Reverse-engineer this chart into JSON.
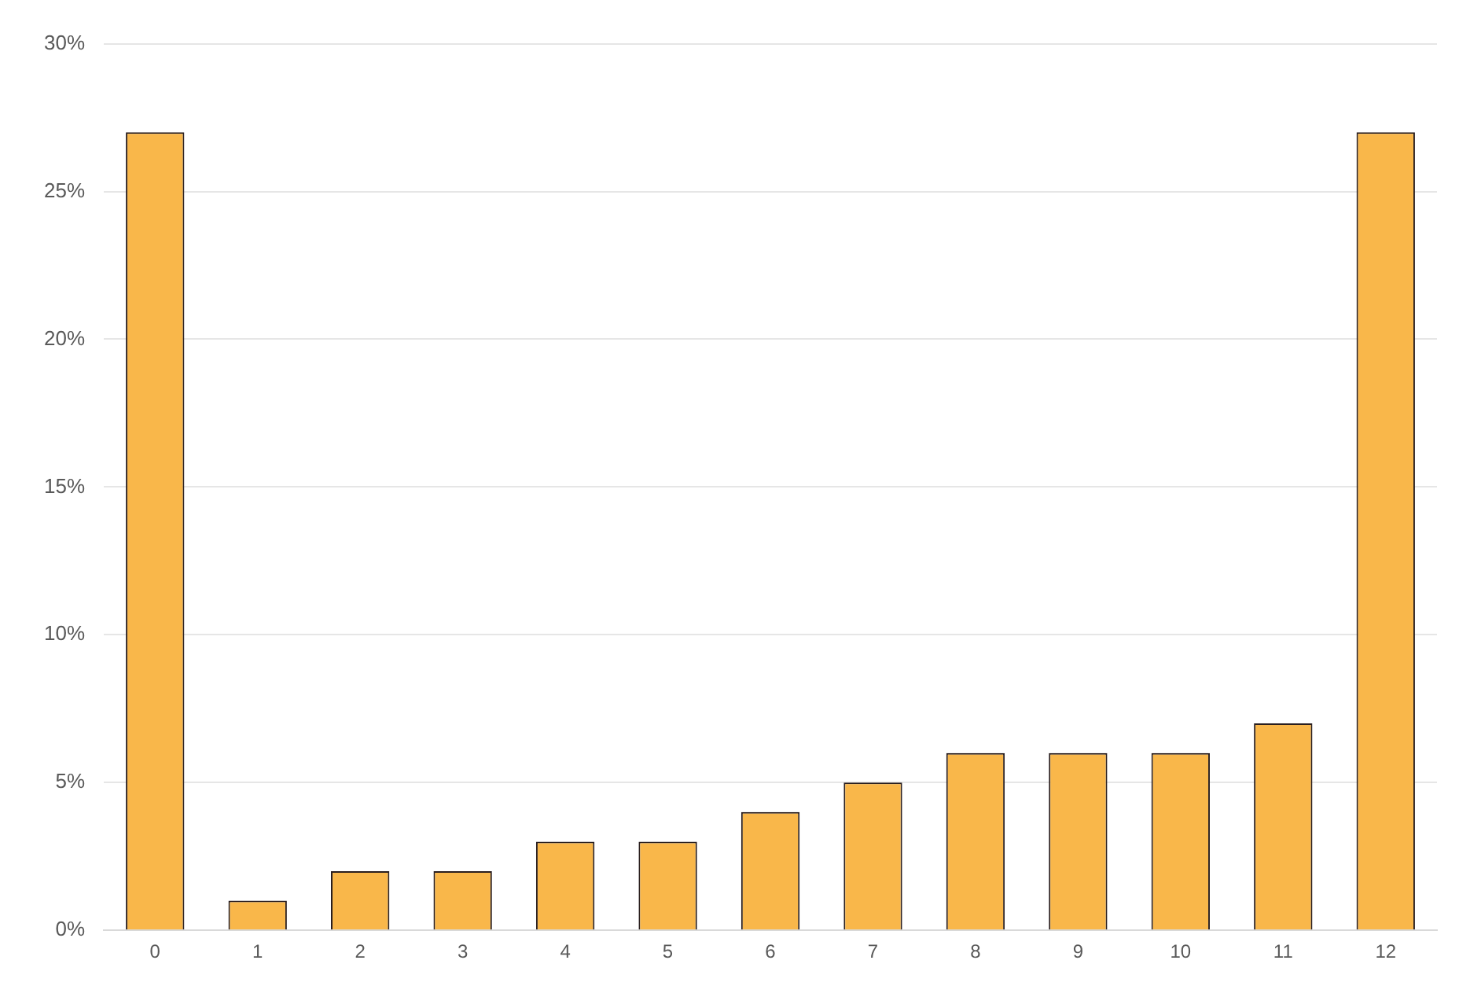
{
  "chart_data": {
    "type": "bar",
    "categories": [
      "0",
      "1",
      "2",
      "3",
      "4",
      "5",
      "6",
      "7",
      "8",
      "9",
      "10",
      "11",
      "12"
    ],
    "values": [
      27,
      1,
      2,
      2,
      3,
      3,
      4,
      5,
      6,
      6,
      6,
      7,
      27
    ],
    "color": "#f9b74a",
    "ylim": [
      0,
      30
    ],
    "yticks": [
      {
        "value": 0,
        "label": "0%"
      },
      {
        "value": 5,
        "label": "5%"
      },
      {
        "value": 10,
        "label": "10%"
      },
      {
        "value": 15,
        "label": "15%"
      },
      {
        "value": 20,
        "label": "20%"
      },
      {
        "value": 25,
        "label": "25%"
      },
      {
        "value": 30,
        "label": "30%"
      }
    ],
    "grid": "y",
    "legend": false
  }
}
